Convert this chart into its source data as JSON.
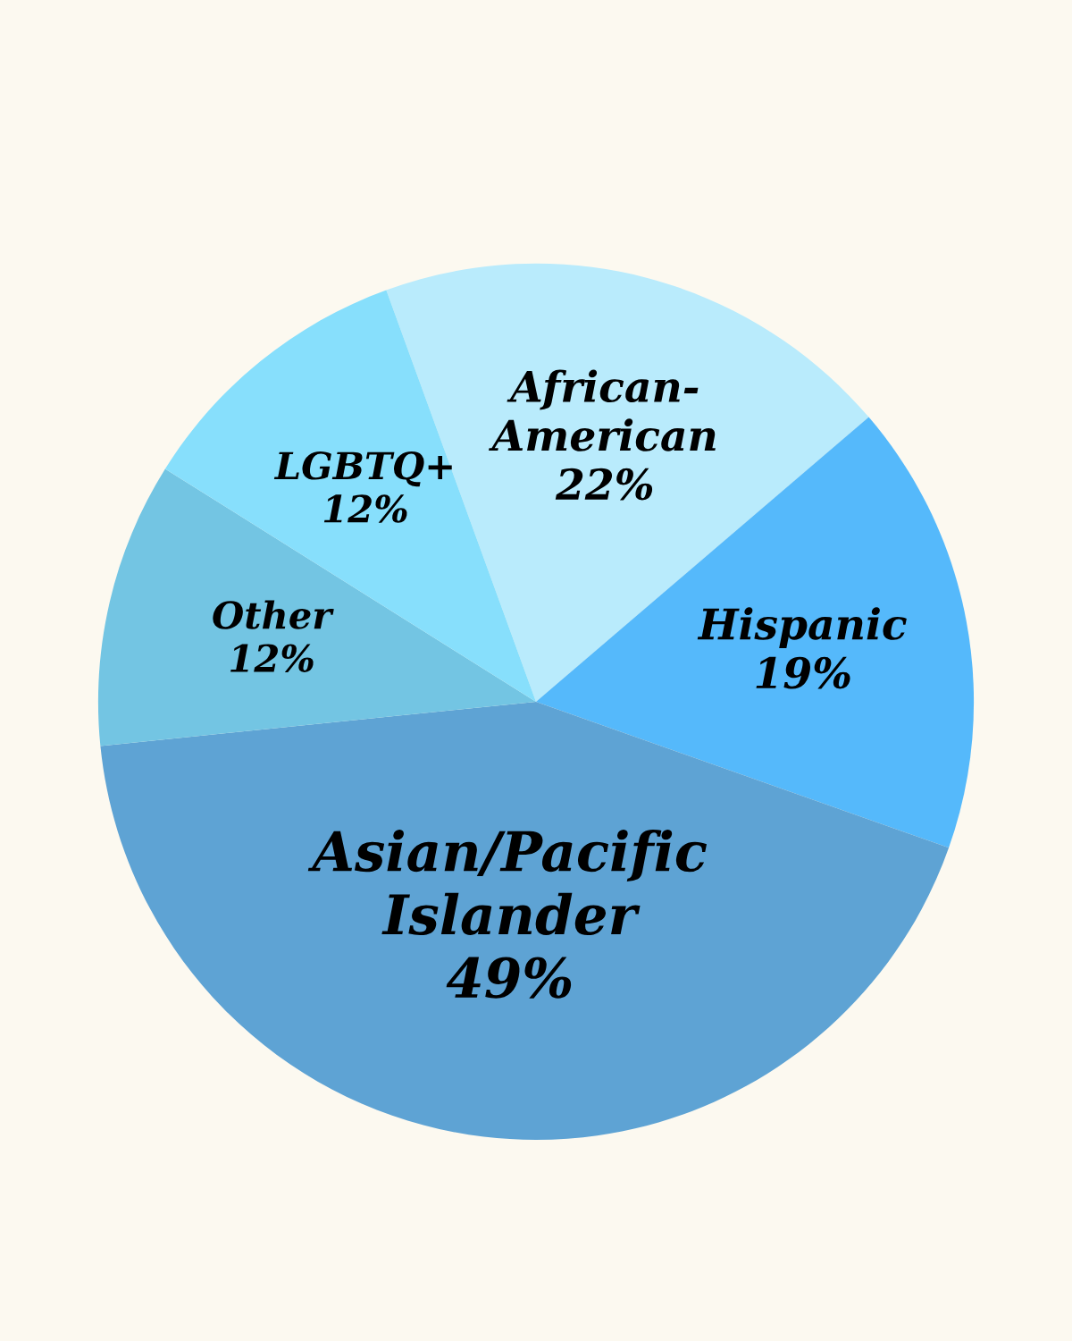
{
  "chart_data": {
    "type": "pie",
    "categories": [
      "African-\nAmerican",
      "Hispanic",
      "Asian/Pacific\nIslander",
      "Other",
      "LGBTQ+"
    ],
    "values": [
      22,
      19,
      49,
      12,
      12
    ],
    "value_labels": [
      "22%",
      "19%",
      "49%",
      "12%",
      "12%"
    ],
    "colors": [
      "#b9ebfc",
      "#55b9fb",
      "#5ea3d4",
      "#73c5e3",
      "#87dffc"
    ],
    "legend": false
  }
}
